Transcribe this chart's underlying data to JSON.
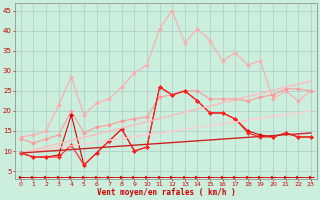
{
  "xlabel": "Vent moyen/en rafales ( km/h )",
  "background_color": "#cceedd",
  "grid_color": "#aacccc",
  "xlim": [
    -0.5,
    23.5
  ],
  "ylim": [
    3,
    47
  ],
  "yticks": [
    5,
    10,
    15,
    20,
    25,
    30,
    35,
    40,
    45
  ],
  "xticks": [
    0,
    1,
    2,
    3,
    4,
    5,
    6,
    7,
    8,
    9,
    10,
    11,
    12,
    13,
    14,
    15,
    16,
    17,
    18,
    19,
    20,
    21,
    22,
    23
  ],
  "lines": [
    {
      "x": [
        0,
        1,
        2,
        3,
        4,
        5,
        6,
        7,
        8,
        9,
        10,
        11,
        12,
        13,
        14,
        15,
        16,
        17,
        18,
        19,
        20,
        21,
        22,
        23
      ],
      "y": [
        13.5,
        14.0,
        15.0,
        21.5,
        28.5,
        19.0,
        22.0,
        23.0,
        26.0,
        29.5,
        31.5,
        40.5,
        45.0,
        37.0,
        40.5,
        37.5,
        32.5,
        34.5,
        31.5,
        32.5,
        23.0,
        25.0,
        22.5,
        25.0
      ],
      "color": "#ffaaaa",
      "marker": "D",
      "markersize": 2.0,
      "linewidth": 0.8,
      "linestyle": "-"
    },
    {
      "x": [
        0,
        1,
        2,
        3,
        4,
        5,
        6,
        7,
        8,
        9,
        10,
        11,
        12,
        13,
        14,
        15,
        16,
        17,
        18,
        19,
        20,
        21,
        22,
        23
      ],
      "y": [
        13.0,
        12.0,
        13.0,
        14.0,
        20.0,
        14.5,
        16.0,
        16.5,
        17.5,
        18.0,
        18.5,
        23.5,
        24.0,
        25.0,
        25.0,
        23.0,
        23.0,
        23.0,
        22.5,
        23.5,
        24.0,
        25.5,
        25.5,
        25.0
      ],
      "color": "#ff9999",
      "marker": "D",
      "markersize": 2.0,
      "linewidth": 0.8,
      "linestyle": "-"
    },
    {
      "x": [
        0,
        1,
        2,
        3,
        4,
        5,
        6,
        7,
        8,
        9,
        10,
        11,
        12,
        13,
        14,
        15,
        16,
        17,
        18,
        19,
        20,
        21,
        22,
        23
      ],
      "y": [
        9.5,
        8.5,
        8.5,
        9.0,
        19.0,
        6.5,
        9.5,
        12.5,
        15.5,
        10.0,
        11.0,
        26.0,
        24.0,
        25.0,
        22.5,
        19.5,
        19.5,
        18.0,
        15.0,
        14.0,
        13.5,
        14.5,
        13.5,
        13.5
      ],
      "color": "#dd0000",
      "marker": "D",
      "markersize": 2.0,
      "linewidth": 0.8,
      "linestyle": "-"
    },
    {
      "x": [
        0,
        1,
        2,
        3,
        4,
        5,
        6,
        7,
        8,
        9,
        10,
        11,
        12,
        13,
        14,
        15,
        16,
        17,
        18,
        19,
        20,
        21,
        22,
        23
      ],
      "y": [
        9.5,
        8.5,
        8.5,
        8.5,
        11.5,
        6.5,
        9.5,
        12.5,
        15.5,
        10.0,
        11.0,
        26.0,
        24.0,
        25.0,
        22.5,
        19.5,
        19.5,
        18.0,
        14.5,
        13.5,
        13.5,
        14.5,
        13.5,
        13.5
      ],
      "color": "#ff2222",
      "marker": "D",
      "markersize": 2.0,
      "linewidth": 0.8,
      "linestyle": "-"
    },
    {
      "x": [
        0,
        23
      ],
      "y": [
        9.5,
        27.5
      ],
      "color": "#ffbbbb",
      "marker": null,
      "markersize": 0,
      "linewidth": 1.0,
      "linestyle": "-"
    },
    {
      "x": [
        0,
        23
      ],
      "y": [
        9.5,
        20.0
      ],
      "color": "#ffcccc",
      "marker": null,
      "markersize": 0,
      "linewidth": 1.0,
      "linestyle": "-"
    },
    {
      "x": [
        0,
        23
      ],
      "y": [
        9.5,
        14.5
      ],
      "color": "#cc2222",
      "marker": null,
      "markersize": 0,
      "linewidth": 1.0,
      "linestyle": "-"
    },
    {
      "x": [
        0,
        1,
        2,
        3,
        4,
        5,
        6,
        7,
        8,
        9,
        10,
        11,
        12,
        13,
        14,
        15,
        16,
        17,
        18,
        19,
        20,
        21,
        22,
        23
      ],
      "y": [
        3.5,
        3.5,
        3.5,
        3.5,
        3.5,
        3.5,
        3.5,
        3.5,
        3.5,
        3.5,
        3.5,
        3.5,
        3.5,
        3.5,
        3.5,
        3.5,
        3.5,
        3.5,
        3.5,
        3.5,
        3.5,
        3.5,
        3.5,
        3.5
      ],
      "color": "#cc0000",
      "marker": "$\\leftarrow$",
      "markersize": 4,
      "linewidth": 0.6,
      "linestyle": "-"
    }
  ]
}
